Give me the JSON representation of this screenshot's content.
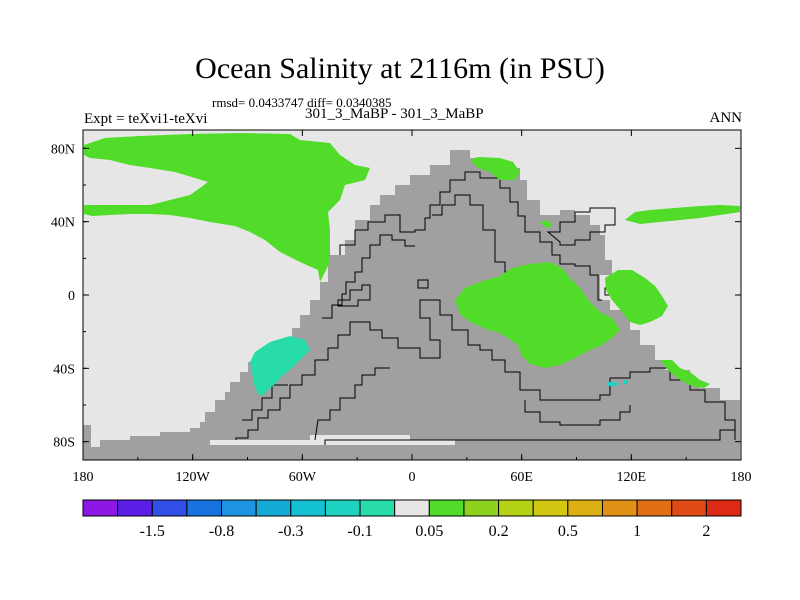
{
  "title": "Ocean Salinity at 2116m (in PSU)",
  "rmsd_text": "rmsd= 0.0433747 diff= 0.0340385",
  "left_label": "Expt = teXvi1-teXvi",
  "center_label": "301_3_MaBP - 301_3_MaBP",
  "right_label": "ANN",
  "map": {
    "projection": "cylindrical equidistant",
    "lon_range": [
      -180,
      180
    ],
    "lat_range": [
      -90,
      90
    ],
    "x_ticks": [
      "180",
      "120W",
      "60W",
      "0",
      "60E",
      "120E",
      "180"
    ],
    "y_ticks": [
      "80N",
      "40N",
      "0",
      "40S",
      "80S"
    ],
    "land_color": "#a0a0a0",
    "ocean_fill": "#e6e6e6"
  },
  "colorbar": {
    "colors": [
      "#8c17e6",
      "#5a1ee6",
      "#2f4fe6",
      "#1673e0",
      "#1f94e0",
      "#14acd6",
      "#12c2d2",
      "#1ed2c2",
      "#28dcaa",
      "#e6e6e6",
      "#50dc28",
      "#8cd21e",
      "#b4d214",
      "#d2c814",
      "#dcb014",
      "#e09014",
      "#e06e14",
      "#e04a14",
      "#dc2a14"
    ],
    "labels": [
      "-1.5",
      "-0.8",
      "-0.3",
      "-0.1",
      "0.05",
      "0.2",
      "0.5",
      "1",
      "2"
    ],
    "label_values": [
      -1.5,
      -0.8,
      -0.3,
      -0.1,
      0.05,
      0.2,
      0.5,
      1,
      2
    ]
  }
}
